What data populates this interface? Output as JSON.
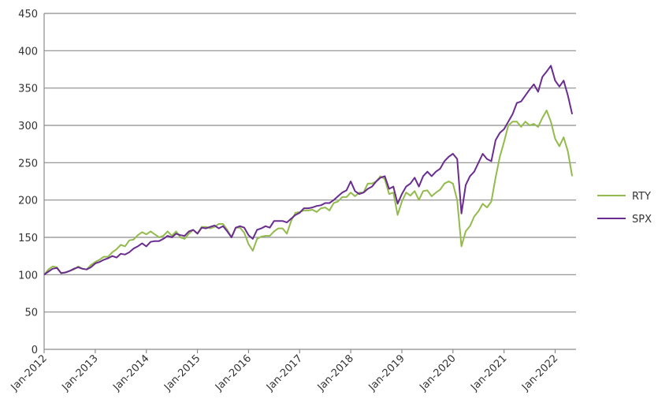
{
  "chart_data": {
    "type": "line",
    "title": "",
    "xlabel": "",
    "ylabel": "",
    "ylim": [
      0,
      450
    ],
    "yticks": [
      0,
      50,
      100,
      150,
      200,
      250,
      300,
      350,
      400,
      450
    ],
    "xticks": [
      "Jan-2012",
      "Jan-2013",
      "Jan-2014",
      "Jan-2015",
      "Jan-2016",
      "Jan-2017",
      "Jan-2018",
      "Jan-2019",
      "Jan-2020",
      "Jan-2021",
      "Jan-2022"
    ],
    "xlim": [
      "2012-01",
      "2022-05"
    ],
    "grid": true,
    "legend_position": "right",
    "series": [
      {
        "name": "RTY",
        "color": "#92bb4c",
        "points": [
          [
            "2012-01",
            100
          ],
          [
            "2012-02",
            107
          ],
          [
            "2012-03",
            111
          ],
          [
            "2012-04",
            110
          ],
          [
            "2012-05",
            102
          ],
          [
            "2012-06",
            103
          ],
          [
            "2012-07",
            105
          ],
          [
            "2012-08",
            107
          ],
          [
            "2012-09",
            111
          ],
          [
            "2012-10",
            108
          ],
          [
            "2012-11",
            107
          ],
          [
            "2012-12",
            113
          ],
          [
            "2013-01",
            117
          ],
          [
            "2013-02",
            120
          ],
          [
            "2013-03",
            124
          ],
          [
            "2013-04",
            124
          ],
          [
            "2013-05",
            130
          ],
          [
            "2013-06",
            134
          ],
          [
            "2013-07",
            140
          ],
          [
            "2013-08",
            138
          ],
          [
            "2013-09",
            146
          ],
          [
            "2013-10",
            147
          ],
          [
            "2013-11",
            153
          ],
          [
            "2013-12",
            157
          ],
          [
            "2014-01",
            154
          ],
          [
            "2014-02",
            158
          ],
          [
            "2014-03",
            154
          ],
          [
            "2014-04",
            150
          ],
          [
            "2014-05",
            152
          ],
          [
            "2014-06",
            158
          ],
          [
            "2014-07",
            152
          ],
          [
            "2014-08",
            158
          ],
          [
            "2014-09",
            150
          ],
          [
            "2014-10",
            148
          ],
          [
            "2014-11",
            155
          ],
          [
            "2014-12",
            160
          ],
          [
            "2015-01",
            155
          ],
          [
            "2015-02",
            164
          ],
          [
            "2015-03",
            164
          ],
          [
            "2015-04",
            162
          ],
          [
            "2015-05",
            164
          ],
          [
            "2015-06",
            168
          ],
          [
            "2015-07",
            168
          ],
          [
            "2015-08",
            160
          ],
          [
            "2015-09",
            150
          ],
          [
            "2015-10",
            163
          ],
          [
            "2015-11",
            163
          ],
          [
            "2015-12",
            156
          ],
          [
            "2016-01",
            141
          ],
          [
            "2016-02",
            132
          ],
          [
            "2016-03",
            148
          ],
          [
            "2016-04",
            151
          ],
          [
            "2016-05",
            152
          ],
          [
            "2016-06",
            152
          ],
          [
            "2016-07",
            158
          ],
          [
            "2016-08",
            162
          ],
          [
            "2016-09",
            162
          ],
          [
            "2016-10",
            155
          ],
          [
            "2016-11",
            172
          ],
          [
            "2016-12",
            183
          ],
          [
            "2017-01",
            184
          ],
          [
            "2017-02",
            186
          ],
          [
            "2017-03",
            186
          ],
          [
            "2017-04",
            187
          ],
          [
            "2017-05",
            184
          ],
          [
            "2017-06",
            189
          ],
          [
            "2017-07",
            190
          ],
          [
            "2017-08",
            186
          ],
          [
            "2017-09",
            196
          ],
          [
            "2017-10",
            198
          ],
          [
            "2017-11",
            204
          ],
          [
            "2017-12",
            204
          ],
          [
            "2018-01",
            210
          ],
          [
            "2018-02",
            205
          ],
          [
            "2018-03",
            210
          ],
          [
            "2018-04",
            210
          ],
          [
            "2018-05",
            222
          ],
          [
            "2018-06",
            222
          ],
          [
            "2018-07",
            225
          ],
          [
            "2018-08",
            232
          ],
          [
            "2018-09",
            228
          ],
          [
            "2018-10",
            208
          ],
          [
            "2018-11",
            210
          ],
          [
            "2018-12",
            180
          ],
          [
            "2019-01",
            198
          ],
          [
            "2019-02",
            210
          ],
          [
            "2019-03",
            206
          ],
          [
            "2019-04",
            212
          ],
          [
            "2019-05",
            200
          ],
          [
            "2019-06",
            212
          ],
          [
            "2019-07",
            213
          ],
          [
            "2019-08",
            205
          ],
          [
            "2019-09",
            210
          ],
          [
            "2019-10",
            214
          ],
          [
            "2019-11",
            222
          ],
          [
            "2019-12",
            225
          ],
          [
            "2020-01",
            222
          ],
          [
            "2020-02",
            200
          ],
          [
            "2020-03",
            138
          ],
          [
            "2020-04",
            158
          ],
          [
            "2020-05",
            165
          ],
          [
            "2020-06",
            178
          ],
          [
            "2020-07",
            185
          ],
          [
            "2020-08",
            195
          ],
          [
            "2020-09",
            190
          ],
          [
            "2020-10",
            198
          ],
          [
            "2020-11",
            230
          ],
          [
            "2020-12",
            258
          ],
          [
            "2021-01",
            278
          ],
          [
            "2021-02",
            300
          ],
          [
            "2021-03",
            305
          ],
          [
            "2021-04",
            305
          ],
          [
            "2021-05",
            298
          ],
          [
            "2021-06",
            305
          ],
          [
            "2021-07",
            300
          ],
          [
            "2021-08",
            302
          ],
          [
            "2021-09",
            298
          ],
          [
            "2021-10",
            310
          ],
          [
            "2021-11",
            320
          ],
          [
            "2021-12",
            305
          ],
          [
            "2022-01",
            282
          ],
          [
            "2022-02",
            272
          ],
          [
            "2022-03",
            284
          ],
          [
            "2022-04",
            265
          ],
          [
            "2022-05",
            232
          ]
        ]
      },
      {
        "name": "SPX",
        "color": "#6a2c91",
        "points": [
          [
            "2012-01",
            100
          ],
          [
            "2012-02",
            104
          ],
          [
            "2012-03",
            108
          ],
          [
            "2012-04",
            109
          ],
          [
            "2012-05",
            102
          ],
          [
            "2012-06",
            103
          ],
          [
            "2012-07",
            105
          ],
          [
            "2012-08",
            108
          ],
          [
            "2012-09",
            110
          ],
          [
            "2012-10",
            108
          ],
          [
            "2012-11",
            107
          ],
          [
            "2012-12",
            110
          ],
          [
            "2013-01",
            115
          ],
          [
            "2013-02",
            117
          ],
          [
            "2013-03",
            120
          ],
          [
            "2013-04",
            122
          ],
          [
            "2013-05",
            125
          ],
          [
            "2013-06",
            123
          ],
          [
            "2013-07",
            128
          ],
          [
            "2013-08",
            127
          ],
          [
            "2013-09",
            130
          ],
          [
            "2013-10",
            135
          ],
          [
            "2013-11",
            138
          ],
          [
            "2013-12",
            142
          ],
          [
            "2014-01",
            138
          ],
          [
            "2014-02",
            144
          ],
          [
            "2014-03",
            145
          ],
          [
            "2014-04",
            145
          ],
          [
            "2014-05",
            148
          ],
          [
            "2014-06",
            152
          ],
          [
            "2014-07",
            150
          ],
          [
            "2014-08",
            155
          ],
          [
            "2014-09",
            153
          ],
          [
            "2014-10",
            152
          ],
          [
            "2014-11",
            158
          ],
          [
            "2014-12",
            160
          ],
          [
            "2015-01",
            155
          ],
          [
            "2015-02",
            163
          ],
          [
            "2015-03",
            162
          ],
          [
            "2015-04",
            164
          ],
          [
            "2015-05",
            166
          ],
          [
            "2015-06",
            162
          ],
          [
            "2015-07",
            165
          ],
          [
            "2015-08",
            158
          ],
          [
            "2015-09",
            150
          ],
          [
            "2015-10",
            163
          ],
          [
            "2015-11",
            165
          ],
          [
            "2015-12",
            163
          ],
          [
            "2016-01",
            153
          ],
          [
            "2016-02",
            148
          ],
          [
            "2016-03",
            160
          ],
          [
            "2016-04",
            162
          ],
          [
            "2016-05",
            165
          ],
          [
            "2016-06",
            163
          ],
          [
            "2016-07",
            172
          ],
          [
            "2016-08",
            172
          ],
          [
            "2016-09",
            172
          ],
          [
            "2016-10",
            170
          ],
          [
            "2016-11",
            175
          ],
          [
            "2016-12",
            180
          ],
          [
            "2017-01",
            183
          ],
          [
            "2017-02",
            189
          ],
          [
            "2017-03",
            189
          ],
          [
            "2017-04",
            190
          ],
          [
            "2017-05",
            192
          ],
          [
            "2017-06",
            193
          ],
          [
            "2017-07",
            196
          ],
          [
            "2017-08",
            196
          ],
          [
            "2017-09",
            200
          ],
          [
            "2017-10",
            205
          ],
          [
            "2017-11",
            210
          ],
          [
            "2017-12",
            213
          ],
          [
            "2018-01",
            225
          ],
          [
            "2018-02",
            212
          ],
          [
            "2018-03",
            208
          ],
          [
            "2018-04",
            210
          ],
          [
            "2018-05",
            215
          ],
          [
            "2018-06",
            218
          ],
          [
            "2018-07",
            225
          ],
          [
            "2018-08",
            230
          ],
          [
            "2018-09",
            232
          ],
          [
            "2018-10",
            215
          ],
          [
            "2018-11",
            218
          ],
          [
            "2018-12",
            195
          ],
          [
            "2019-01",
            208
          ],
          [
            "2019-02",
            218
          ],
          [
            "2019-03",
            222
          ],
          [
            "2019-04",
            230
          ],
          [
            "2019-05",
            218
          ],
          [
            "2019-06",
            232
          ],
          [
            "2019-07",
            238
          ],
          [
            "2019-08",
            232
          ],
          [
            "2019-09",
            238
          ],
          [
            "2019-10",
            242
          ],
          [
            "2019-11",
            252
          ],
          [
            "2019-12",
            258
          ],
          [
            "2020-01",
            262
          ],
          [
            "2020-02",
            255
          ],
          [
            "2020-03",
            182
          ],
          [
            "2020-04",
            220
          ],
          [
            "2020-05",
            232
          ],
          [
            "2020-06",
            238
          ],
          [
            "2020-07",
            250
          ],
          [
            "2020-08",
            262
          ],
          [
            "2020-09",
            255
          ],
          [
            "2020-10",
            252
          ],
          [
            "2020-11",
            280
          ],
          [
            "2020-12",
            290
          ],
          [
            "2021-01",
            295
          ],
          [
            "2021-02",
            305
          ],
          [
            "2021-03",
            315
          ],
          [
            "2021-04",
            330
          ],
          [
            "2021-05",
            332
          ],
          [
            "2021-06",
            340
          ],
          [
            "2021-07",
            348
          ],
          [
            "2021-08",
            355
          ],
          [
            "2021-09",
            345
          ],
          [
            "2021-10",
            365
          ],
          [
            "2021-11",
            372
          ],
          [
            "2021-12",
            380
          ],
          [
            "2022-01",
            360
          ],
          [
            "2022-02",
            352
          ],
          [
            "2022-03",
            360
          ],
          [
            "2022-04",
            340
          ],
          [
            "2022-05",
            315
          ]
        ]
      }
    ]
  }
}
